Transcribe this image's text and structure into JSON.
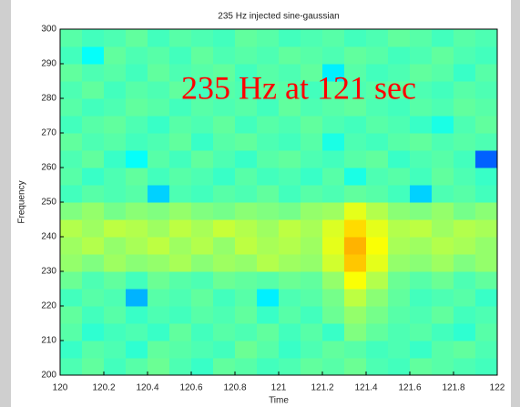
{
  "chart_data": {
    "type": "heatmap",
    "title": "235 Hz injected sine-gaussian",
    "xlabel": "Time",
    "ylabel": "Frequency",
    "annotation": "235 Hz at 121 sec",
    "annotation_color": "#ff0000",
    "colormap": "jet",
    "zlim": [
      0,
      1
    ],
    "xlim": [
      120,
      122
    ],
    "ylim": [
      200,
      300
    ],
    "xticks": [
      120,
      120.2,
      120.4,
      120.6,
      120.8,
      121,
      121.2,
      121.4,
      121.6,
      121.8,
      122
    ],
    "yticks": [
      200,
      210,
      220,
      230,
      240,
      250,
      260,
      270,
      280,
      290,
      300
    ],
    "x_edges": [
      120,
      120.1,
      120.2,
      120.3,
      120.4,
      120.5,
      120.6,
      120.7,
      120.8,
      120.9,
      121,
      121.1,
      121.2,
      121.3,
      121.4,
      121.5,
      121.6,
      121.7,
      121.8,
      121.9,
      122
    ],
    "y_edges": [
      200,
      205,
      210,
      215,
      220,
      225,
      230,
      235,
      240,
      245,
      250,
      255,
      260,
      265,
      270,
      275,
      280,
      285,
      290,
      295,
      300
    ],
    "z": [
      [
        0.45,
        0.47,
        0.44,
        0.46,
        0.48,
        0.45,
        0.43,
        0.47,
        0.46,
        0.44,
        0.45,
        0.47,
        0.46,
        0.48,
        0.45,
        0.44,
        0.47,
        0.46,
        0.45,
        0.44
      ],
      [
        0.43,
        0.46,
        0.45,
        0.42,
        0.47,
        0.46,
        0.45,
        0.44,
        0.48,
        0.46,
        0.43,
        0.45,
        0.47,
        0.46,
        0.44,
        0.45,
        0.43,
        0.46,
        0.47,
        0.45
      ],
      [
        0.46,
        0.42,
        0.44,
        0.45,
        0.43,
        0.47,
        0.44,
        0.46,
        0.45,
        0.47,
        0.44,
        0.46,
        0.43,
        0.5,
        0.47,
        0.45,
        0.46,
        0.44,
        0.42,
        0.46
      ],
      [
        0.47,
        0.44,
        0.46,
        0.43,
        0.45,
        0.44,
        0.46,
        0.45,
        0.47,
        0.43,
        0.46,
        0.44,
        0.48,
        0.52,
        0.49,
        0.46,
        0.45,
        0.47,
        0.44,
        0.45
      ],
      [
        0.44,
        0.46,
        0.45,
        0.3,
        0.46,
        0.45,
        0.47,
        0.44,
        0.46,
        0.36,
        0.45,
        0.46,
        0.49,
        0.56,
        0.51,
        0.47,
        0.44,
        0.45,
        0.46,
        0.43
      ],
      [
        0.48,
        0.45,
        0.47,
        0.44,
        0.48,
        0.46,
        0.45,
        0.48,
        0.47,
        0.46,
        0.48,
        0.47,
        0.52,
        0.62,
        0.55,
        0.48,
        0.46,
        0.48,
        0.45,
        0.47
      ],
      [
        0.52,
        0.5,
        0.53,
        0.51,
        0.52,
        0.54,
        0.51,
        0.53,
        0.52,
        0.55,
        0.53,
        0.52,
        0.58,
        0.68,
        0.6,
        0.52,
        0.51,
        0.53,
        0.5,
        0.52
      ],
      [
        0.53,
        0.55,
        0.52,
        0.54,
        0.56,
        0.53,
        0.55,
        0.52,
        0.56,
        0.54,
        0.55,
        0.53,
        0.6,
        0.7,
        0.62,
        0.54,
        0.53,
        0.55,
        0.54,
        0.52
      ],
      [
        0.55,
        0.53,
        0.56,
        0.55,
        0.53,
        0.56,
        0.54,
        0.57,
        0.55,
        0.53,
        0.56,
        0.54,
        0.59,
        0.66,
        0.6,
        0.55,
        0.56,
        0.53,
        0.55,
        0.54
      ],
      [
        0.5,
        0.52,
        0.49,
        0.51,
        0.5,
        0.52,
        0.5,
        0.49,
        0.51,
        0.5,
        0.49,
        0.52,
        0.53,
        0.6,
        0.55,
        0.51,
        0.5,
        0.52,
        0.49,
        0.51
      ],
      [
        0.44,
        0.46,
        0.45,
        0.46,
        0.33,
        0.45,
        0.44,
        0.46,
        0.45,
        0.47,
        0.44,
        0.46,
        0.45,
        0.47,
        0.46,
        0.44,
        0.33,
        0.45,
        0.46,
        0.44
      ],
      [
        0.46,
        0.43,
        0.45,
        0.47,
        0.44,
        0.46,
        0.45,
        0.43,
        0.46,
        0.44,
        0.45,
        0.43,
        0.46,
        0.4,
        0.45,
        0.46,
        0.44,
        0.47,
        0.45,
        0.43
      ],
      [
        0.45,
        0.47,
        0.43,
        0.38,
        0.46,
        0.44,
        0.47,
        0.45,
        0.43,
        0.46,
        0.47,
        0.45,
        0.44,
        0.46,
        0.47,
        0.43,
        0.45,
        0.46,
        0.44,
        0.22
      ],
      [
        0.47,
        0.45,
        0.46,
        0.44,
        0.45,
        0.47,
        0.43,
        0.46,
        0.47,
        0.45,
        0.44,
        0.46,
        0.4,
        0.45,
        0.44,
        0.46,
        0.47,
        0.45,
        0.46,
        0.45
      ],
      [
        0.44,
        0.46,
        0.47,
        0.45,
        0.43,
        0.46,
        0.45,
        0.47,
        0.44,
        0.46,
        0.45,
        0.47,
        0.45,
        0.44,
        0.46,
        0.45,
        0.43,
        0.4,
        0.45,
        0.47
      ],
      [
        0.46,
        0.44,
        0.45,
        0.47,
        0.46,
        0.44,
        0.46,
        0.45,
        0.46,
        0.44,
        0.47,
        0.45,
        0.46,
        0.47,
        0.45,
        0.44,
        0.46,
        0.45,
        0.47,
        0.46
      ],
      [
        0.45,
        0.47,
        0.44,
        0.46,
        0.45,
        0.47,
        0.44,
        0.46,
        0.45,
        0.47,
        0.46,
        0.44,
        0.47,
        0.45,
        0.46,
        0.47,
        0.45,
        0.44,
        0.46,
        0.45
      ],
      [
        0.47,
        0.45,
        0.46,
        0.44,
        0.47,
        0.45,
        0.46,
        0.47,
        0.44,
        0.46,
        0.45,
        0.47,
        0.36,
        0.46,
        0.44,
        0.45,
        0.47,
        0.46,
        0.43,
        0.46
      ],
      [
        0.44,
        0.38,
        0.47,
        0.45,
        0.46,
        0.44,
        0.47,
        0.45,
        0.46,
        0.45,
        0.47,
        0.46,
        0.45,
        0.47,
        0.46,
        0.44,
        0.45,
        0.47,
        0.45,
        0.44
      ],
      [
        0.46,
        0.44,
        0.45,
        0.47,
        0.44,
        0.46,
        0.45,
        0.44,
        0.47,
        0.46,
        0.44,
        0.45,
        0.46,
        0.44,
        0.45,
        0.47,
        0.46,
        0.44,
        0.46,
        0.45
      ]
    ]
  }
}
